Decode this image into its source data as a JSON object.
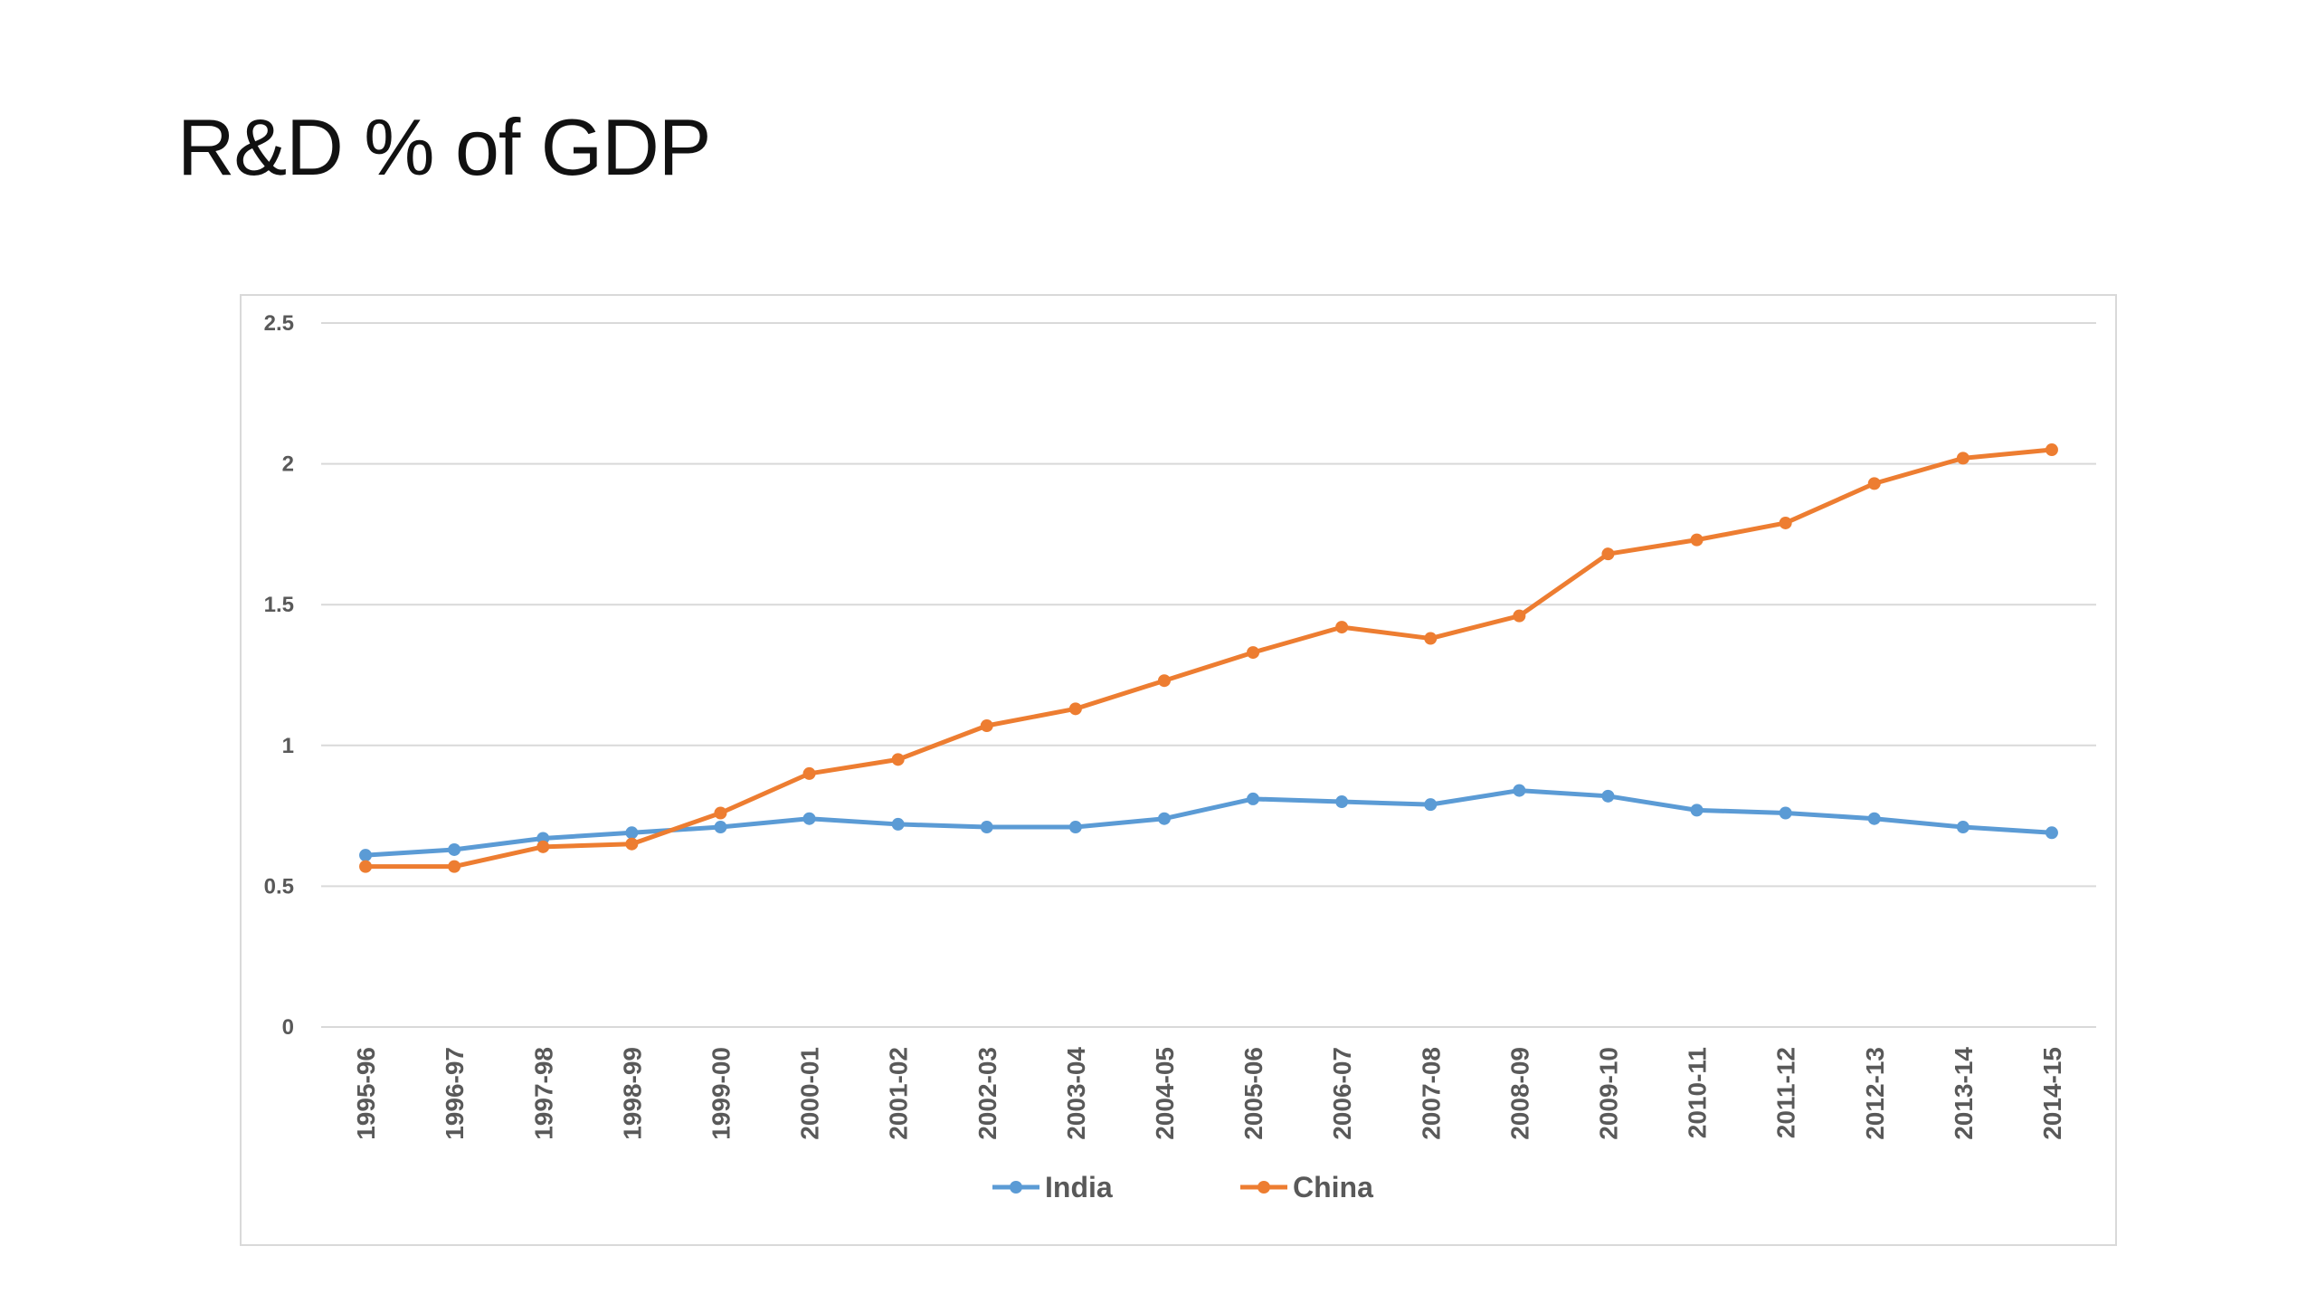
{
  "slide": {
    "title": "R&D % of GDP"
  },
  "chart_data": {
    "type": "line",
    "title": "",
    "xlabel": "",
    "ylabel": "",
    "ylim": [
      0,
      2.5
    ],
    "yticks": [
      "0",
      "0.5",
      "1",
      "1.5",
      "2",
      "2.5"
    ],
    "grid": "horizontal",
    "legend_position": "bottom",
    "categories": [
      "1995-96",
      "1996-97",
      "1997-98",
      "1998-99",
      "1999-00",
      "2000-01",
      "2001-02",
      "2002-03",
      "2003-04",
      "2004-05",
      "2005-06",
      "2006-07",
      "2007-08",
      "2008-09",
      "2009-10",
      "2010-11",
      "2011-12",
      "2012-13",
      "2013-14",
      "2014-15"
    ],
    "series": [
      {
        "name": "India",
        "color": "#5b9bd5",
        "values": [
          0.61,
          0.63,
          0.67,
          0.69,
          0.71,
          0.74,
          0.72,
          0.71,
          0.71,
          0.74,
          0.81,
          0.8,
          0.79,
          0.84,
          0.82,
          0.77,
          0.76,
          0.74,
          0.71,
          0.69
        ]
      },
      {
        "name": "China",
        "color": "#ed7d31",
        "values": [
          0.57,
          0.57,
          0.64,
          0.65,
          0.76,
          0.9,
          0.95,
          1.07,
          1.13,
          1.23,
          1.33,
          1.42,
          1.38,
          1.46,
          1.68,
          1.73,
          1.79,
          1.93,
          2.02,
          2.05
        ]
      }
    ]
  }
}
